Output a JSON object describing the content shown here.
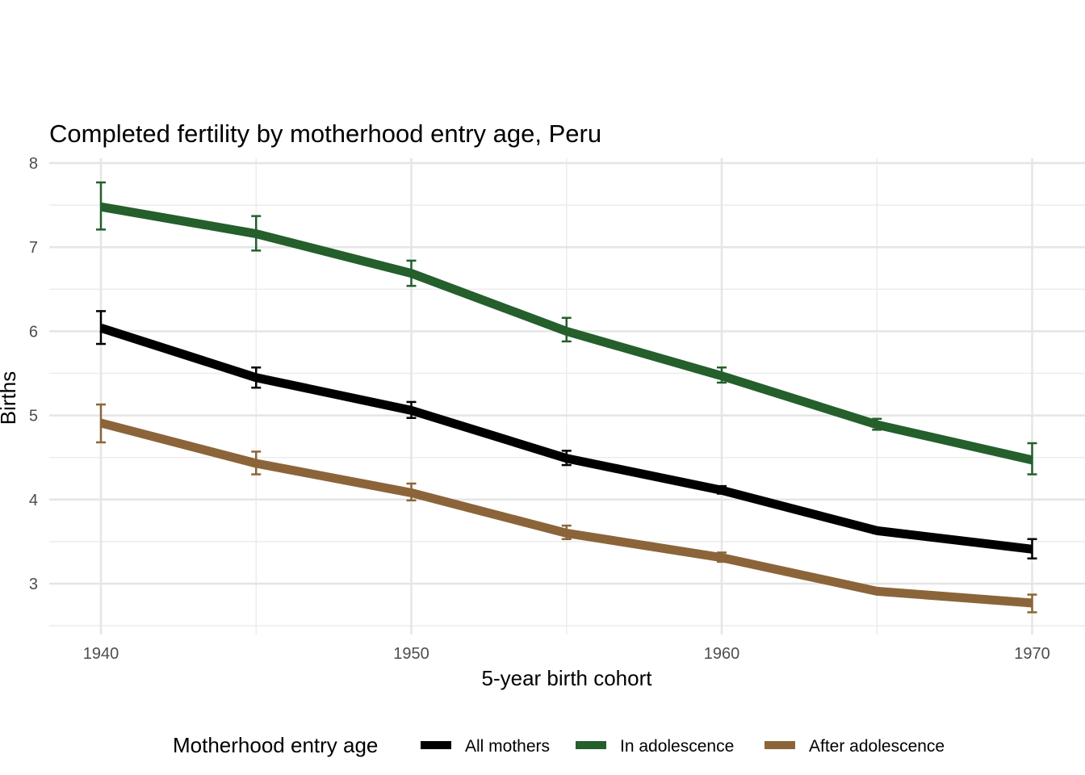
{
  "chart_data": {
    "type": "line",
    "title": "Completed fertility by motherhood entry age,  Peru",
    "xlabel": "5-year birth cohort",
    "ylabel": "Births",
    "x": [
      1940,
      1945,
      1950,
      1955,
      1960,
      1965,
      1970
    ],
    "xlim": [
      1938.3,
      1972.8
    ],
    "ylim": [
      2.4,
      8.0
    ],
    "x_ticks": [
      1940,
      1950,
      1960,
      1970
    ],
    "x_tick_labels": [
      "1940",
      "1950",
      "1960",
      "1970"
    ],
    "x_minor_ticks": [
      1945,
      1955,
      1965
    ],
    "y_ticks": [
      3,
      4,
      5,
      6,
      7,
      8
    ],
    "y_tick_labels": [
      "3",
      "4",
      "5",
      "6",
      "7",
      "8"
    ],
    "y_minor_ticks": [
      2.5,
      3.5,
      4.5,
      5.5,
      6.5,
      7.5
    ],
    "grid": true,
    "legend": {
      "title": "Motherhood entry age",
      "position": "bottom"
    },
    "series": [
      {
        "name": "All mothers",
        "color": "#000000",
        "values": [
          6.04,
          5.45,
          5.06,
          4.49,
          4.11,
          3.63,
          3.41
        ],
        "lower": [
          5.85,
          5.33,
          4.97,
          4.41,
          4.07,
          3.6,
          3.3
        ],
        "upper": [
          6.24,
          5.57,
          5.16,
          4.58,
          4.16,
          3.66,
          3.53
        ]
      },
      {
        "name": "In adolescence",
        "color": "#245f2c",
        "values": [
          7.48,
          7.16,
          6.69,
          6.0,
          5.47,
          4.89,
          4.47
        ],
        "lower": [
          7.21,
          6.96,
          6.54,
          5.88,
          5.39,
          4.83,
          4.3
        ],
        "upper": [
          7.77,
          7.37,
          6.84,
          6.16,
          5.57,
          4.96,
          4.67
        ]
      },
      {
        "name": "After adolescence",
        "color": "#8b6539",
        "values": [
          4.91,
          4.43,
          4.08,
          3.6,
          3.31,
          2.91,
          2.77
        ],
        "lower": [
          4.68,
          4.3,
          3.99,
          3.53,
          3.26,
          2.89,
          2.66
        ],
        "upper": [
          5.13,
          4.57,
          4.19,
          3.69,
          3.37,
          2.93,
          2.87
        ]
      }
    ]
  }
}
